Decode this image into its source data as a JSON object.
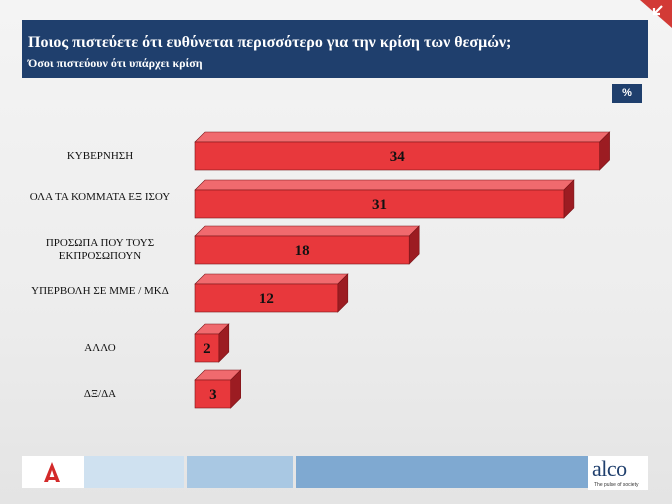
{
  "header": {
    "title": "Ποιος πιστεύετε ότι ευθύνεται περισσότερο για την κρίση των θεσμών;",
    "subtitle": "Όσοι πιστεύουν ότι υπάρχει κρίση"
  },
  "unit_badge": "%",
  "brand": {
    "name": "alco",
    "tagline": "The pulse of society"
  },
  "colors": {
    "header_bg": "#1f3f6d",
    "bar_front": "#e8383c",
    "bar_top": "#f06a6e",
    "bar_side": "#9c1c22"
  },
  "chart_data": {
    "type": "bar",
    "orientation": "horizontal",
    "categories": [
      "ΚΥΒΕΡΝΗΣΗ",
      "ΟΛΑ ΤΑ ΚΟΜΜΑΤΑ ΕΞ ΙΣΟΥ",
      "ΠΡΟΣΩΠΑ ΠΟΥ ΤΟΥΣ ΕΚΠΡΟΣΩΠΟΥΝ",
      "ΥΠΕΡΒΟΛΗ ΣΕ ΜΜΕ / ΜΚΔ",
      "ΑΛΛΟ",
      "ΔΞ/ΔΑ"
    ],
    "values": [
      34,
      31,
      18,
      12,
      2,
      3
    ],
    "unit": "%",
    "title": "",
    "xlabel": "",
    "ylabel": "",
    "grid": false,
    "legend": "none"
  }
}
